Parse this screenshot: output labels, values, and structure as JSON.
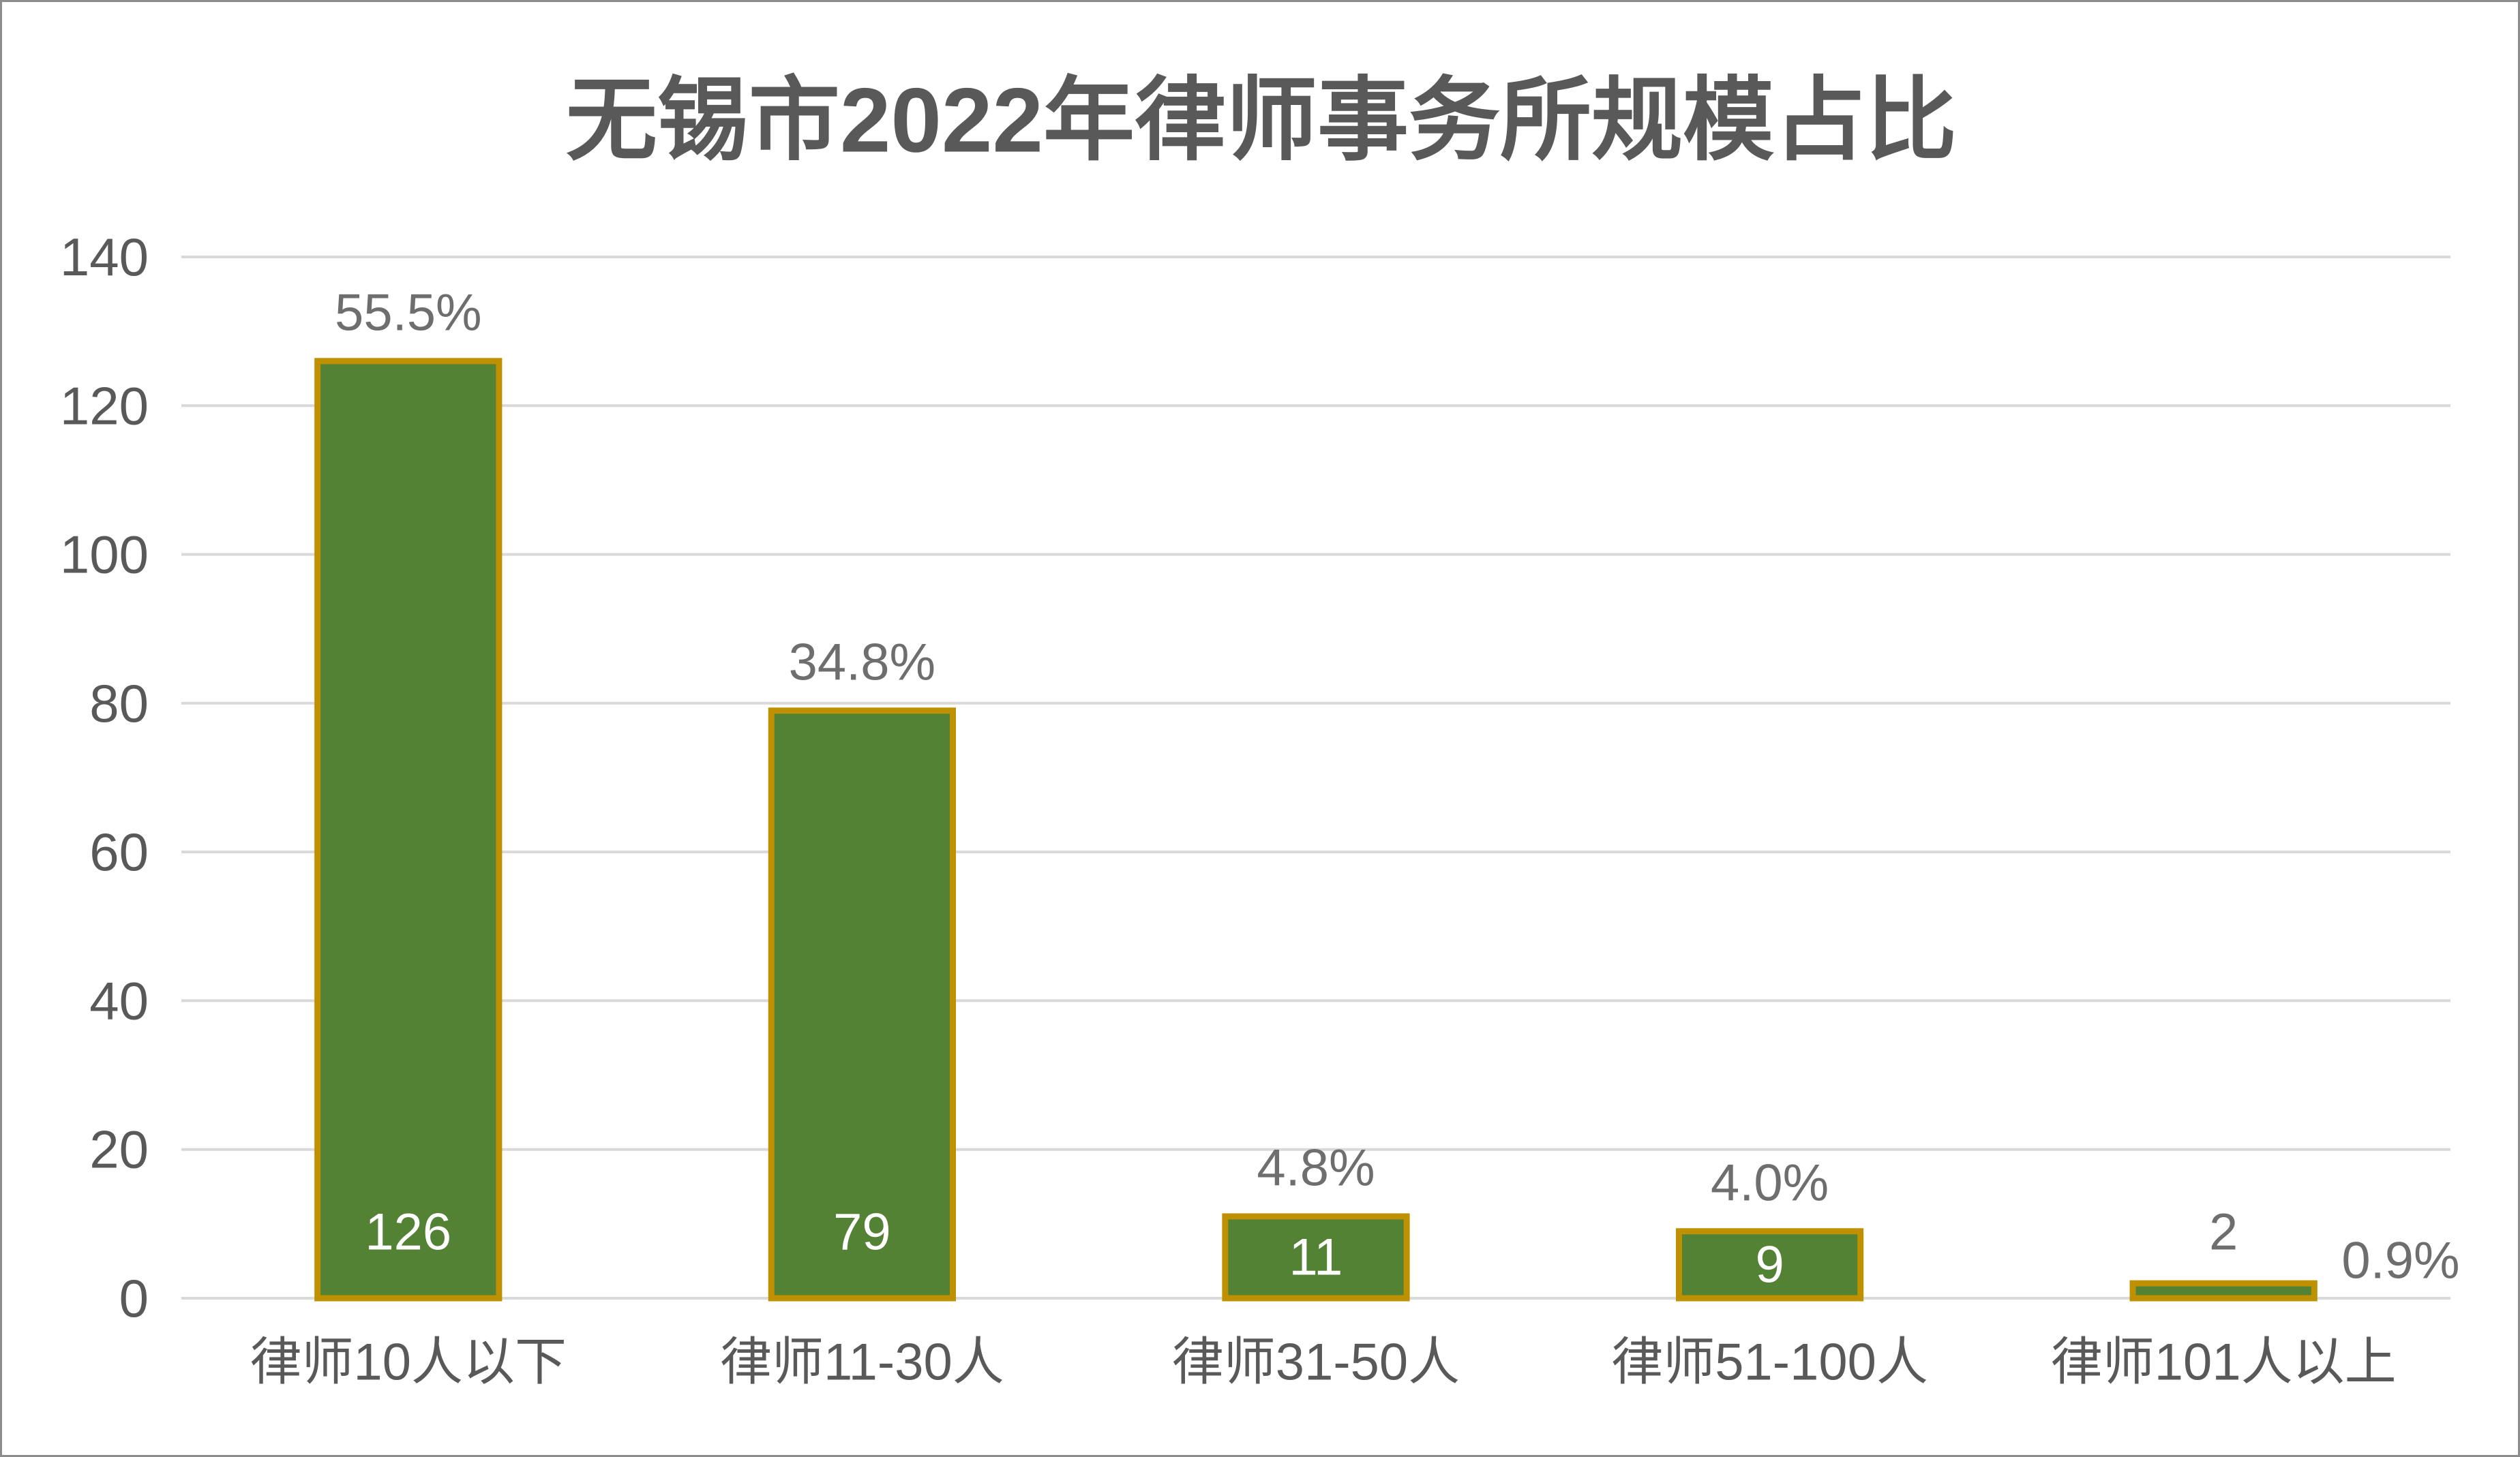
{
  "chart_data": {
    "type": "bar",
    "title": "无锡市2022年律师事务所规模占比",
    "categories": [
      "律师10人以下",
      "律师11-30人",
      "律师31-50人",
      "律师51-100人",
      "律师101人以上"
    ],
    "values": [
      126,
      79,
      11,
      9,
      2
    ],
    "percent_labels": [
      "55.5%",
      "34.8%",
      "4.8%",
      "4.0%",
      "0.9%"
    ],
    "ylim": [
      0,
      140
    ],
    "yticks": [
      0,
      20,
      40,
      60,
      80,
      100,
      120,
      140
    ],
    "grid": true,
    "show_legend": false,
    "colors": {
      "bar_fill": "#548235",
      "bar_outline": "#BF9000",
      "text": "#595959",
      "label_muted": "#6E6E6E",
      "label_inside": "#FFFFFF",
      "grid": "#D9D9D9",
      "frame": "#8C8C8C"
    }
  }
}
